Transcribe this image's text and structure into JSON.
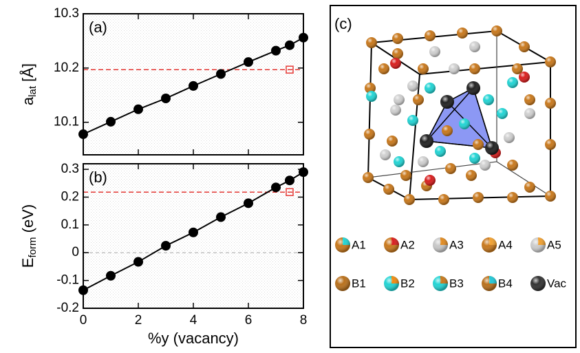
{
  "chart_data": [
    {
      "type": "line",
      "panel_label": "(a)",
      "ylabel": {
        "text": "a",
        "sub": "lat",
        "suffix": " [Å]"
      },
      "x": [
        0,
        1,
        2,
        3,
        4,
        5,
        6,
        7,
        7.5,
        8
      ],
      "series": [
        {
          "color": "#000000",
          "values": [
            10.078,
            10.101,
            10.124,
            10.144,
            10.167,
            10.189,
            10.211,
            10.232,
            10.242,
            10.256
          ]
        }
      ],
      "reference": {
        "x": 7.5,
        "y": 10.197,
        "color": "#e53935"
      },
      "xlim": [
        0,
        8
      ],
      "xticks": [
        0,
        2,
        4,
        6,
        8
      ],
      "show_xtick_labels": false,
      "ylim": [
        10.04,
        10.3
      ],
      "yticks": [
        10.1,
        10.2,
        10.3
      ]
    },
    {
      "type": "line",
      "panel_label": "(b)",
      "ylabel": {
        "text": "E",
        "sub": "form",
        "suffix": " (eV)"
      },
      "xlabel": "%y (vacancy)",
      "x": [
        0,
        1,
        2,
        3,
        4,
        5,
        6,
        7,
        7.5,
        8
      ],
      "series": [
        {
          "color": "#000000",
          "values": [
            -0.135,
            -0.083,
            -0.033,
            0.025,
            0.073,
            0.128,
            0.178,
            0.235,
            0.26,
            0.29
          ]
        }
      ],
      "reference": {
        "x": 7.5,
        "y": 0.218,
        "color": "#e53935"
      },
      "hlines": [
        {
          "value": 0,
          "color": "#bbbbbb"
        }
      ],
      "xlim": [
        0,
        8
      ],
      "xticks": [
        0,
        2,
        4,
        6,
        8
      ],
      "show_xtick_labels": true,
      "ylim": [
        -0.2,
        0.32
      ],
      "yticks": [
        -0.2,
        -0.1,
        0,
        0.1,
        0.2,
        0.3
      ]
    }
  ],
  "panel_c": {
    "label": "(c)",
    "legend": [
      {
        "label": "A1",
        "colors": [
          "#c8781c",
          "#22d4d4"
        ]
      },
      {
        "label": "A2",
        "colors": [
          "#c8781c",
          "#d81e1e"
        ]
      },
      {
        "label": "A3",
        "colors": [
          "#c8c8c8",
          "#e08a20"
        ]
      },
      {
        "label": "A4",
        "colors": [
          "#c8781c",
          "#f0a030"
        ]
      },
      {
        "label": "A5",
        "colors": [
          "#cccccc",
          "#f0a030"
        ]
      },
      {
        "label": "B1",
        "colors": [
          "#b8701c",
          "#b8701c"
        ]
      },
      {
        "label": "B2",
        "colors": [
          "#22d4d4",
          "#f08a10"
        ]
      },
      {
        "label": "B3",
        "colors": [
          "#22d4d4",
          "#c8781c"
        ]
      },
      {
        "label": "B4",
        "colors": [
          "#b8701c",
          "#22c8d8"
        ]
      },
      {
        "label": "Vac",
        "colors": [
          "#333333",
          "#333333"
        ]
      }
    ]
  }
}
